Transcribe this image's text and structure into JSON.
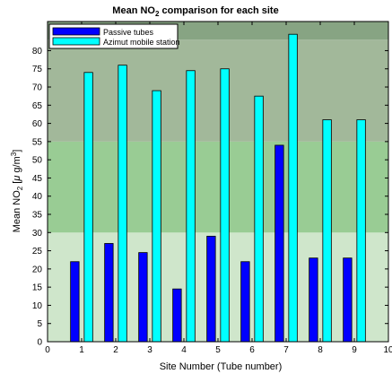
{
  "chart_data": {
    "type": "bar",
    "title_main": "Mean NO",
    "title_sub": "2",
    "title_rest": " comparison for each site",
    "xlabel": "Site Number (Tube number)",
    "ylabel_main": "Mean NO",
    "ylabel_sub": "2",
    "ylabel_rest": " [",
    "ylabel_mu": "μ",
    "ylabel_unit": " g/m",
    "ylabel_sup": "3",
    "ylabel_close": "]",
    "xlim": [
      0,
      10
    ],
    "ylim": [
      0,
      88
    ],
    "xticks": [
      "0",
      "1",
      "2",
      "3",
      "4",
      "5",
      "6",
      "7",
      "8",
      "9",
      "10"
    ],
    "yticks": [
      "0",
      "5",
      "10",
      "15",
      "20",
      "25",
      "30",
      "35",
      "40",
      "45",
      "50",
      "55",
      "60",
      "65",
      "70",
      "75",
      "80"
    ],
    "categories": [
      "1",
      "2",
      "3",
      "4",
      "5",
      "6",
      "7",
      "8",
      "9"
    ],
    "series": [
      {
        "name": "Passive tubes",
        "color": "#0000ff",
        "values": [
          22,
          27,
          24.5,
          14.5,
          29,
          22,
          54,
          23,
          23
        ]
      },
      {
        "name": "Azimut mobile station",
        "color": "#00ffff",
        "values": [
          74,
          76,
          69,
          74.5,
          75,
          67.5,
          84.5,
          61,
          61
        ]
      }
    ],
    "background_bands": [
      {
        "from": 0,
        "to": 30,
        "color": "#cfe6cb"
      },
      {
        "from": 30,
        "to": 55,
        "color": "#99cc94"
      },
      {
        "from": 55,
        "to": 83,
        "color": "#a2b89a"
      },
      {
        "from": 83,
        "to": 88,
        "color": "#87a483"
      }
    ],
    "legend_position": "top-left",
    "grid": false
  }
}
